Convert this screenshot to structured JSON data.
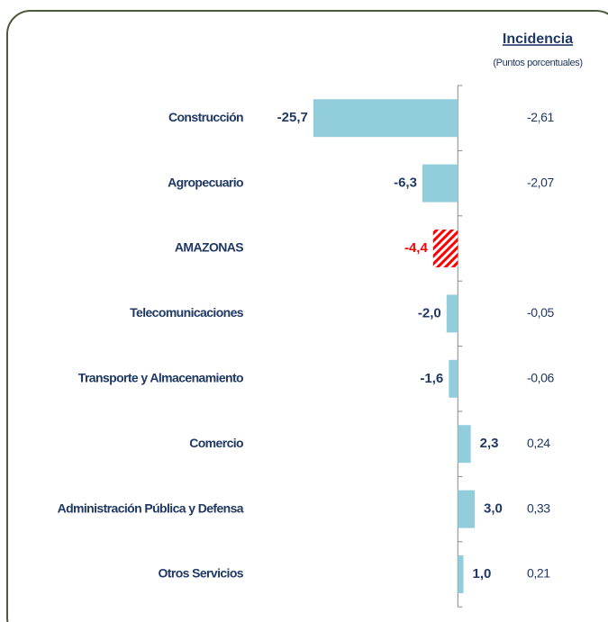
{
  "chart_data": {
    "type": "bar",
    "orientation": "horizontal",
    "categories": [
      "Construcción",
      "Agropecuario",
      "AMAZONAS",
      "Telecomunicaciones",
      "Transporte y Almacenamiento",
      "Comercio",
      "Administración Pública y Defensa",
      "Otros Servicios"
    ],
    "values": [
      -25.7,
      -6.3,
      -4.4,
      -2.0,
      -1.6,
      2.3,
      3.0,
      1.0
    ],
    "value_labels": [
      "-25,7",
      "-6,3",
      "-4,4",
      "-2,0",
      "-1,6",
      "2,3",
      "3,0",
      "1,0"
    ],
    "color": "#92cddc",
    "highlight_category": "AMAZONAS",
    "highlight_color": "#ff0000",
    "xlim": [
      -26,
      3
    ],
    "incidence": {
      "title": "Incidencia",
      "subtitle": "(Puntos porcentuales)",
      "values": [
        -2.61,
        -2.07,
        null,
        -0.05,
        -0.06,
        0.24,
        0.33,
        0.21
      ],
      "value_labels": [
        "-2,61",
        "-2,07",
        null,
        "-0,05",
        "-0,06",
        "0,24",
        "0,33",
        "0,21"
      ]
    }
  }
}
